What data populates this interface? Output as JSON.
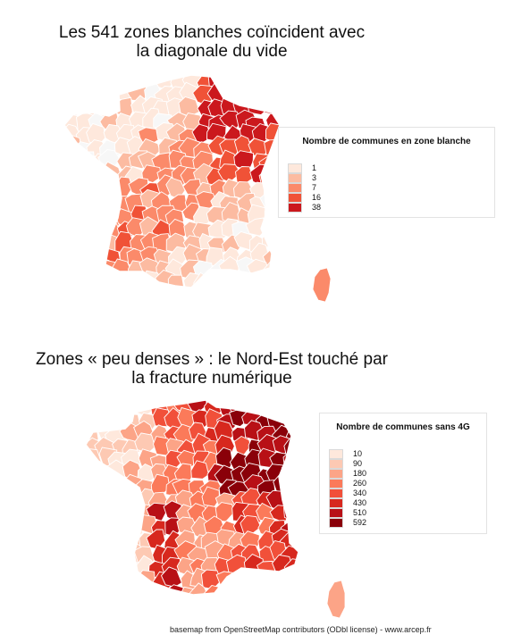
{
  "maps": [
    {
      "title_line1": "Les 541 zones blanches coïncident avec",
      "title_line2": "la diagonale du vide",
      "legend": {
        "title": "Nombre de communes en zone blanche",
        "items": [
          {
            "label": "1",
            "color": "#fee8dc"
          },
          {
            "label": "3",
            "color": "#fcbba1"
          },
          {
            "label": "7",
            "color": "#fb8a6a"
          },
          {
            "label": "16",
            "color": "#f05237"
          },
          {
            "label": "38",
            "color": "#cb181d"
          }
        ]
      },
      "fill_colors": [
        "#f7f7f7",
        "#fee8dc",
        "#fcbba1",
        "#fb8a6a",
        "#f05237",
        "#cb181d"
      ],
      "no_data_color": "#f0f0f0"
    },
    {
      "title_line1": "Zones « peu denses » : le Nord-Est touché par",
      "title_line2": "la fracture numérique",
      "legend": {
        "title": "Nombre de communes sans 4G",
        "items": [
          {
            "label": "10",
            "color": "#fee8dc"
          },
          {
            "label": "90",
            "color": "#fdc9b3"
          },
          {
            "label": "180",
            "color": "#fca487"
          },
          {
            "label": "260",
            "color": "#fb7a5a"
          },
          {
            "label": "340",
            "color": "#f1503a"
          },
          {
            "label": "430",
            "color": "#d7281e"
          },
          {
            "label": "510",
            "color": "#b81016"
          },
          {
            "label": "592",
            "color": "#8a0009"
          }
        ]
      },
      "fill_colors": [
        "#fee8dc",
        "#fdc9b3",
        "#fca487",
        "#fb7a5a",
        "#f1503a",
        "#d7281e",
        "#b81016",
        "#8a0009"
      ],
      "no_data_color": "#f5f5f5"
    }
  ],
  "attribution": "basemap from OpenStreetMap contributors (ODbl license) - www.arcep.fr"
}
